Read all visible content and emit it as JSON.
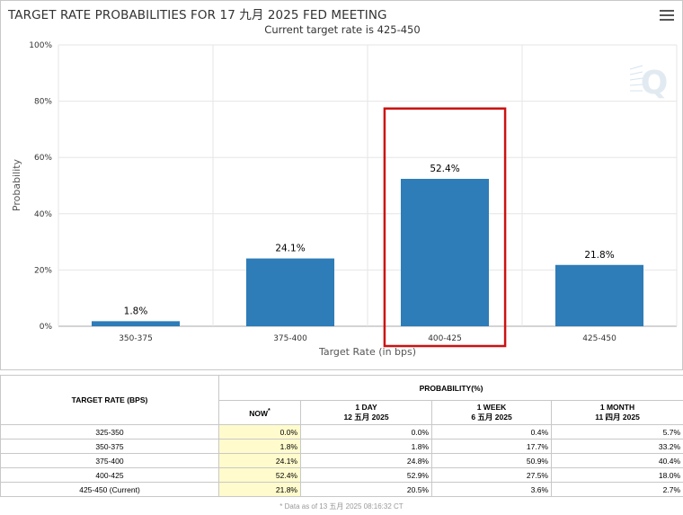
{
  "chart": {
    "title": "TARGET RATE PROBABILITIES FOR 17 九月 2025 FED MEETING",
    "subtitle": "Current target rate is 425-450",
    "watermark": "Q",
    "accent_color": "#2e7cb8",
    "highlight_color": "#cc1111"
  },
  "chart_data": {
    "type": "bar",
    "categories": [
      "350-375",
      "375-400",
      "400-425",
      "425-450"
    ],
    "values": [
      1.8,
      24.1,
      52.4,
      21.8
    ],
    "data_labels": [
      "1.8%",
      "24.1%",
      "52.4%",
      "21.8%"
    ],
    "yticks": [
      "0%",
      "20%",
      "40%",
      "60%",
      "80%",
      "100%"
    ],
    "ylim": [
      0,
      100
    ],
    "xlabel": "Target Rate (in bps)",
    "ylabel": "Probability",
    "highlighted_category": "400-425",
    "grid": true
  },
  "table": {
    "rate_header": "TARGET RATE (BPS)",
    "prob_header": "PROBABILITY(%)",
    "columns": [
      {
        "line1": "NOW",
        "line2": "",
        "mark": "*"
      },
      {
        "line1": "1 DAY",
        "line2": "12 五月 2025",
        "mark": ""
      },
      {
        "line1": "1 WEEK",
        "line2": "6 五月 2025",
        "mark": ""
      },
      {
        "line1": "1 MONTH",
        "line2": "11 四月 2025",
        "mark": ""
      }
    ],
    "rows": [
      {
        "rate": "325-350",
        "now": "0.0%",
        "day": "0.0%",
        "week": "0.4%",
        "month": "5.7%"
      },
      {
        "rate": "350-375",
        "now": "1.8%",
        "day": "1.8%",
        "week": "17.7%",
        "month": "33.2%"
      },
      {
        "rate": "375-400",
        "now": "24.1%",
        "day": "24.8%",
        "week": "50.9%",
        "month": "40.4%"
      },
      {
        "rate": "400-425",
        "now": "52.4%",
        "day": "52.9%",
        "week": "27.5%",
        "month": "18.0%"
      },
      {
        "rate": "425-450 (Current)",
        "now": "21.8%",
        "day": "20.5%",
        "week": "3.6%",
        "month": "2.7%"
      }
    ],
    "footnote": "* Data as of 13 五月 2025 08:16:32 CT"
  }
}
